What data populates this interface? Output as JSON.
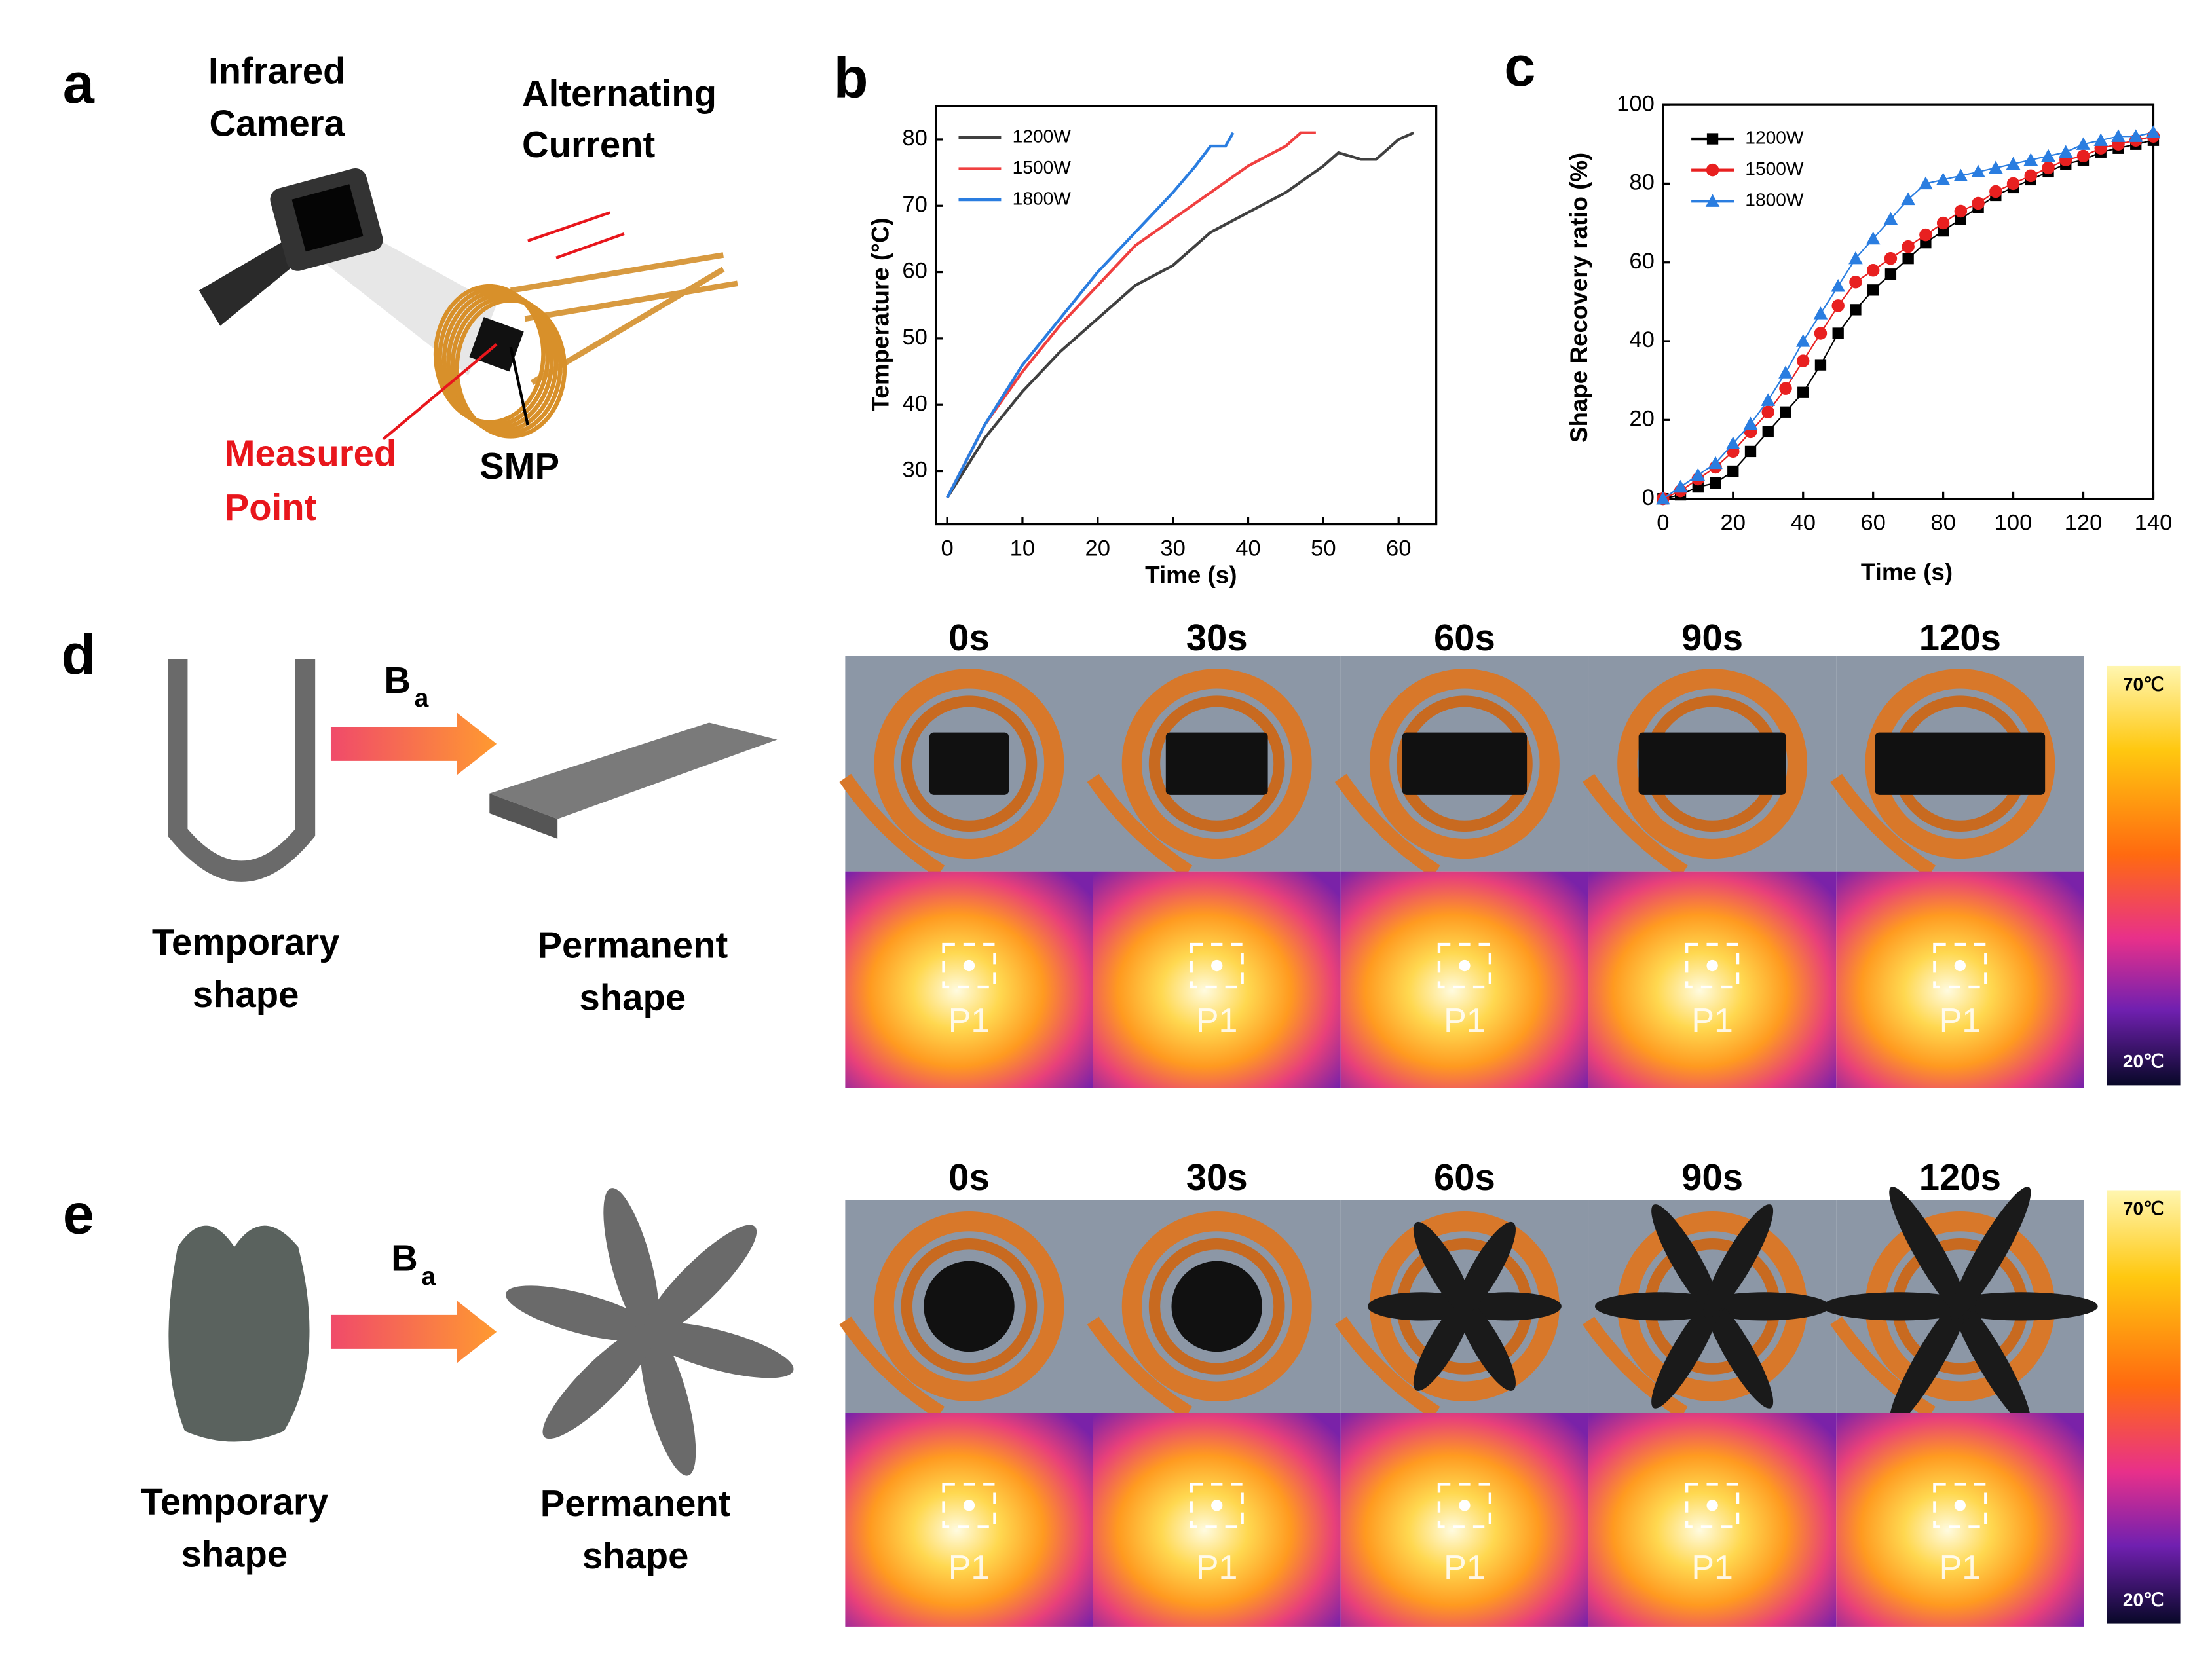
{
  "panels": {
    "a": {
      "letter": "a",
      "camera_label": [
        "Infrared",
        "Camera"
      ],
      "current_label": [
        "Alternating",
        "Current"
      ],
      "point_label": [
        "Measured",
        "Point"
      ],
      "sample_label": "SMP"
    },
    "b": {
      "letter": "b"
    },
    "c": {
      "letter": "c"
    },
    "d": {
      "letter": "d",
      "field": {
        "main": "B",
        "sub": "a"
      },
      "temporary_label": [
        "Temporary",
        "shape"
      ],
      "permanent_label": [
        "Permanent",
        "shape"
      ],
      "times": [
        "0s",
        "30s",
        "60s",
        "90s",
        "120s"
      ],
      "probe": "P1",
      "colorbar": {
        "max": "70℃",
        "min": "20℃"
      }
    },
    "e": {
      "letter": "e",
      "field": {
        "main": "B",
        "sub": "a"
      },
      "temporary_label": [
        "Temporary",
        "shape"
      ],
      "permanent_label": [
        "Permanent",
        "shape"
      ],
      "times": [
        "0s",
        "30s",
        "60s",
        "90s",
        "120s"
      ],
      "probe": "P1",
      "colorbar": {
        "max": "70℃",
        "min": "20℃"
      }
    }
  },
  "chart_data": [
    {
      "type": "line",
      "x_label": "Time (s)",
      "y_label": "Temperature (°C)",
      "xlim": [
        -1.5,
        65
      ],
      "ylim": [
        22,
        85
      ],
      "xticks": [
        0,
        10,
        20,
        30,
        40,
        50,
        60
      ],
      "yticks": [
        30,
        40,
        50,
        60,
        70,
        80
      ],
      "series": [
        {
          "name": "1200W",
          "color": "#404040",
          "x": [
            0,
            5,
            10,
            15,
            20,
            25,
            30,
            35,
            40,
            45,
            50,
            52,
            55,
            57,
            60,
            62
          ],
          "values": [
            26,
            35,
            42,
            48,
            53,
            58,
            61,
            66,
            69,
            72,
            76,
            78,
            77,
            77,
            80,
            81
          ]
        },
        {
          "name": "1500W",
          "color": "#f04040",
          "x": [
            0,
            5,
            10,
            15,
            20,
            25,
            30,
            35,
            40,
            45,
            47,
            49
          ],
          "values": [
            26,
            37,
            45,
            52,
            58,
            64,
            68,
            72,
            76,
            79,
            81,
            81
          ]
        },
        {
          "name": "1800W",
          "color": "#2a7de0",
          "x": [
            0,
            5,
            10,
            15,
            20,
            25,
            30,
            33,
            35,
            37,
            38
          ],
          "values": [
            26,
            37,
            46,
            53,
            60,
            66,
            72,
            76,
            79,
            79,
            81
          ]
        }
      ]
    },
    {
      "type": "scatter",
      "x_label": "Time (s)",
      "y_label": "Shape Recovery ratio (%)",
      "xlim": [
        0,
        140
      ],
      "ylim": [
        0,
        100
      ],
      "xticks": [
        0,
        20,
        40,
        60,
        80,
        100,
        120,
        140
      ],
      "yticks": [
        0,
        20,
        40,
        60,
        80,
        100
      ],
      "x": [
        0,
        5,
        10,
        15,
        20,
        25,
        30,
        35,
        40,
        45,
        50,
        55,
        60,
        65,
        70,
        75,
        80,
        85,
        90,
        95,
        100,
        105,
        110,
        115,
        120,
        125,
        130,
        135,
        140
      ],
      "series": [
        {
          "name": "1200W",
          "color": "#000000",
          "marker": "square",
          "values": [
            0,
            1,
            3,
            4,
            7,
            12,
            17,
            22,
            27,
            34,
            42,
            48,
            53,
            57,
            61,
            65,
            68,
            71,
            74,
            77,
            79,
            81,
            83,
            85,
            86,
            88,
            89,
            90,
            91
          ]
        },
        {
          "name": "1500W",
          "color": "#e82020",
          "marker": "circle",
          "values": [
            0,
            2,
            5,
            8,
            12,
            17,
            22,
            28,
            35,
            42,
            49,
            55,
            58,
            61,
            64,
            67,
            70,
            73,
            75,
            78,
            80,
            82,
            84,
            86,
            87,
            89,
            90,
            91,
            92
          ]
        },
        {
          "name": "1800W",
          "color": "#2a7de0",
          "marker": "triangle",
          "values": [
            0,
            3,
            6,
            9,
            14,
            19,
            25,
            32,
            40,
            47,
            54,
            61,
            66,
            71,
            76,
            80,
            81,
            82,
            83,
            84,
            85,
            86,
            87,
            88,
            90,
            91,
            92,
            92,
            93
          ]
        }
      ]
    }
  ]
}
